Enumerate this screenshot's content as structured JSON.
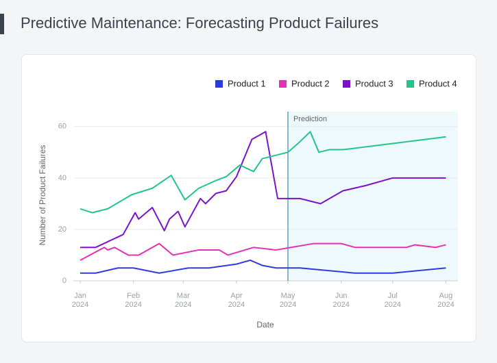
{
  "page_title": "Predictive Maintenance: Forecasting Product Failures",
  "chart_data": {
    "type": "line",
    "xlabel": "Date",
    "ylabel": "Number of Product Failures",
    "xlim": [
      "2023-12-28",
      "2024-08-08"
    ],
    "xticks": [
      {
        "value": "2024-01-01",
        "label": "Jan 2024"
      },
      {
        "value": "2024-02-01",
        "label": "Feb 2024"
      },
      {
        "value": "2024-03-01",
        "label": "Mar 2024"
      },
      {
        "value": "2024-04-01",
        "label": "Apr 2024"
      },
      {
        "value": "2024-05-01",
        "label": "May 2024"
      },
      {
        "value": "2024-06-01",
        "label": "Jun 2024"
      },
      {
        "value": "2024-07-01",
        "label": "Jul 2024"
      },
      {
        "value": "2024-08-01",
        "label": "Aug 2024"
      }
    ],
    "ylim": [
      0,
      65
    ],
    "yticks": [
      0,
      20,
      40,
      60
    ],
    "grid": true,
    "legend": "top-right",
    "prediction": {
      "start": "2024-05-01",
      "label": "Prediction",
      "color": "#4a90b8",
      "fill": "#edf9fd"
    },
    "series": [
      {
        "name": "Product 1",
        "color": "#2d3ae0",
        "x": [
          "2024-01-01",
          "2024-01-10",
          "2024-01-23",
          "2024-02-01",
          "2024-02-16",
          "2024-03-04",
          "2024-03-16",
          "2024-04-01",
          "2024-04-09",
          "2024-04-16",
          "2024-04-24",
          "2024-05-08",
          "2024-06-09",
          "2024-07-01",
          "2024-08-01"
        ],
        "values": [
          3,
          3,
          5,
          5,
          3,
          5,
          5,
          6.5,
          8,
          6,
          5,
          5,
          3,
          3,
          5
        ]
      },
      {
        "name": "Product 2",
        "color": "#e62fb6",
        "x": [
          "2024-01-01",
          "2024-01-15",
          "2024-01-17",
          "2024-01-21",
          "2024-01-29",
          "2024-02-04",
          "2024-02-16",
          "2024-02-24",
          "2024-03-10",
          "2024-03-22",
          "2024-03-27",
          "2024-04-11",
          "2024-04-24",
          "2024-05-16",
          "2024-06-01",
          "2024-06-09",
          "2024-07-09",
          "2024-07-14",
          "2024-07-26",
          "2024-08-01"
        ],
        "values": [
          8,
          13,
          12,
          13,
          10,
          10,
          14.5,
          10,
          12,
          12,
          10,
          13,
          12,
          14.5,
          14.5,
          13,
          13,
          14,
          13,
          14
        ]
      },
      {
        "name": "Product 3",
        "color": "#7c12c8",
        "x": [
          "2024-01-01",
          "2024-01-10",
          "2024-01-26",
          "2024-02-02",
          "2024-02-04",
          "2024-02-12",
          "2024-02-19",
          "2024-02-22",
          "2024-02-27",
          "2024-03-02",
          "2024-03-11",
          "2024-03-14",
          "2024-03-20",
          "2024-03-26",
          "2024-04-01",
          "2024-04-10",
          "2024-04-18",
          "2024-04-25",
          "2024-05-08",
          "2024-05-20",
          "2024-06-02",
          "2024-06-15",
          "2024-07-01",
          "2024-08-01"
        ],
        "values": [
          13,
          13,
          18,
          26.5,
          24,
          28.5,
          19.5,
          24,
          27,
          21,
          32,
          30,
          34,
          35,
          40.5,
          55,
          58,
          32,
          32,
          30,
          35,
          37,
          40,
          40
        ]
      },
      {
        "name": "Product 4",
        "color": "#22c48a",
        "x": [
          "2024-01-01",
          "2024-01-08",
          "2024-01-17",
          "2024-01-31",
          "2024-02-12",
          "2024-02-23",
          "2024-03-02",
          "2024-03-10",
          "2024-03-20",
          "2024-03-26",
          "2024-04-03",
          "2024-04-11",
          "2024-04-16",
          "2024-05-01",
          "2024-05-07",
          "2024-05-14",
          "2024-05-19",
          "2024-05-25",
          "2024-06-02",
          "2024-08-01"
        ],
        "values": [
          28,
          26.5,
          28,
          33.5,
          36,
          41,
          31.5,
          36,
          39,
          40.5,
          45,
          42.5,
          47.5,
          50,
          53.5,
          58,
          50,
          51,
          51,
          56
        ]
      }
    ]
  }
}
